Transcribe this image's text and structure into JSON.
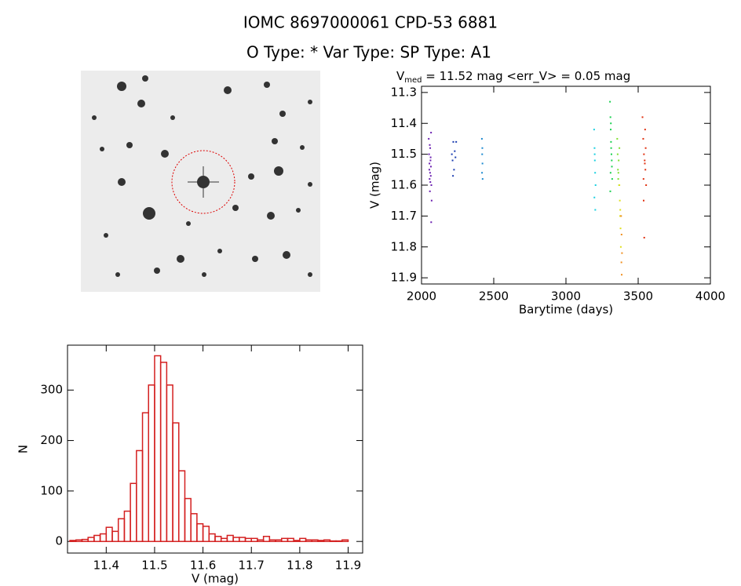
{
  "header": {
    "title": "IOMC 8697000061   CPD-53  6881",
    "subtitle": "O Type: *  Var Type:   SP Type: A1"
  },
  "chart_data": [
    {
      "type": "scatter",
      "title": "V",
      "title_subscript": "med",
      "title_rest": " = 11.52 mag <err_V> = 0.05 mag",
      "x_label": "Barytime (days)",
      "y_label": "V (mag)",
      "xlim": [
        2000,
        4000
      ],
      "xticks": [
        2000,
        2500,
        3000,
        3500,
        4000
      ],
      "ylim": [
        11.92,
        11.28
      ],
      "yticks": [
        11.3,
        11.4,
        11.5,
        11.6,
        11.7,
        11.8,
        11.9
      ],
      "series": [
        {
          "color": "#6a1fb0",
          "x": [
            2050,
            2052,
            2054,
            2056,
            2058,
            2060,
            2062,
            2064,
            2066,
            2068,
            2070,
            2055,
            2063,
            2059,
            2067,
            2061,
            2057,
            2065
          ],
          "values": [
            11.45,
            11.5,
            11.55,
            11.58,
            11.62,
            11.48,
            11.52,
            11.57,
            11.43,
            11.6,
            11.65,
            11.53,
            11.51,
            11.56,
            11.72,
            11.59,
            11.47,
            11.54
          ]
        },
        {
          "color": "#1a3cb0",
          "x": [
            2210,
            2215,
            2220,
            2225,
            2230,
            2235,
            2240,
            2218
          ],
          "values": [
            11.5,
            11.52,
            11.46,
            11.55,
            11.49,
            11.51,
            11.46,
            11.57
          ]
        },
        {
          "color": "#1c8ad0",
          "x": [
            2418,
            2420,
            2422,
            2419,
            2421,
            2423
          ],
          "values": [
            11.45,
            11.5,
            11.53,
            11.56,
            11.48,
            11.58
          ]
        },
        {
          "color": "#1ad0e0",
          "x": [
            3195,
            3198,
            3200,
            3202,
            3205,
            3197,
            3203,
            3199
          ],
          "values": [
            11.42,
            11.48,
            11.52,
            11.56,
            11.6,
            11.64,
            11.68,
            11.5
          ]
        },
        {
          "color": "#1ad050",
          "x": [
            3305,
            3308,
            3310,
            3312,
            3315,
            3318,
            3320,
            3307,
            3313,
            3317,
            3311,
            3309
          ],
          "values": [
            11.33,
            11.38,
            11.42,
            11.46,
            11.5,
            11.54,
            11.58,
            11.62,
            11.48,
            11.52,
            11.4,
            11.56
          ]
        },
        {
          "color": "#80e030",
          "x": [
            3355,
            3358,
            3360,
            3362,
            3365,
            3368,
            3370,
            3363
          ],
          "values": [
            11.45,
            11.5,
            11.55,
            11.58,
            11.52,
            11.6,
            11.48,
            11.56
          ]
        },
        {
          "color": "#e0e020",
          "x": [
            3370,
            3373,
            3375,
            3378,
            3380,
            3376
          ],
          "values": [
            11.6,
            11.65,
            11.7,
            11.74,
            11.8,
            11.68
          ]
        },
        {
          "color": "#f09020",
          "x": [
            3382,
            3385,
            3388,
            3386,
            3384
          ],
          "values": [
            11.7,
            11.76,
            11.82,
            11.89,
            11.85
          ]
        },
        {
          "color": "#e03010",
          "x": [
            3530,
            3535,
            3540,
            3545,
            3550,
            3555,
            3538,
            3548,
            3542,
            3552,
            3537,
            3546
          ],
          "values": [
            11.38,
            11.45,
            11.5,
            11.52,
            11.55,
            11.6,
            11.65,
            11.42,
            11.77,
            11.48,
            11.58,
            11.53
          ]
        }
      ]
    },
    {
      "type": "histogram",
      "x_label": "V (mag)",
      "y_label": "N",
      "color": "#d42020",
      "xlim": [
        11.32,
        11.93
      ],
      "xticks": [
        11.4,
        11.5,
        11.6,
        11.7,
        11.8,
        11.9
      ],
      "ylim": [
        -23,
        389
      ],
      "yticks": [
        0,
        100,
        200,
        300
      ],
      "bins": [
        11.325,
        11.3375,
        11.35,
        11.3625,
        11.375,
        11.3875,
        11.4,
        11.4125,
        11.425,
        11.4375,
        11.45,
        11.4625,
        11.475,
        11.4875,
        11.5,
        11.5125,
        11.525,
        11.5375,
        11.55,
        11.5625,
        11.575,
        11.5875,
        11.6,
        11.6125,
        11.625,
        11.6375,
        11.65,
        11.6625,
        11.675,
        11.6875,
        11.7,
        11.7125,
        11.725,
        11.7375,
        11.75,
        11.7625,
        11.775,
        11.7875,
        11.8,
        11.8125,
        11.825,
        11.8375,
        11.85,
        11.8625,
        11.875,
        11.8875,
        11.9
      ],
      "values": [
        2,
        3,
        4,
        8,
        12,
        15,
        28,
        20,
        45,
        60,
        115,
        180,
        255,
        310,
        368,
        355,
        310,
        235,
        140,
        85,
        55,
        35,
        30,
        15,
        10,
        6,
        12,
        8,
        8,
        6,
        6,
        3,
        10,
        3,
        3,
        6,
        6,
        2,
        6,
        3,
        3,
        2,
        3,
        1,
        1,
        3
      ]
    }
  ]
}
